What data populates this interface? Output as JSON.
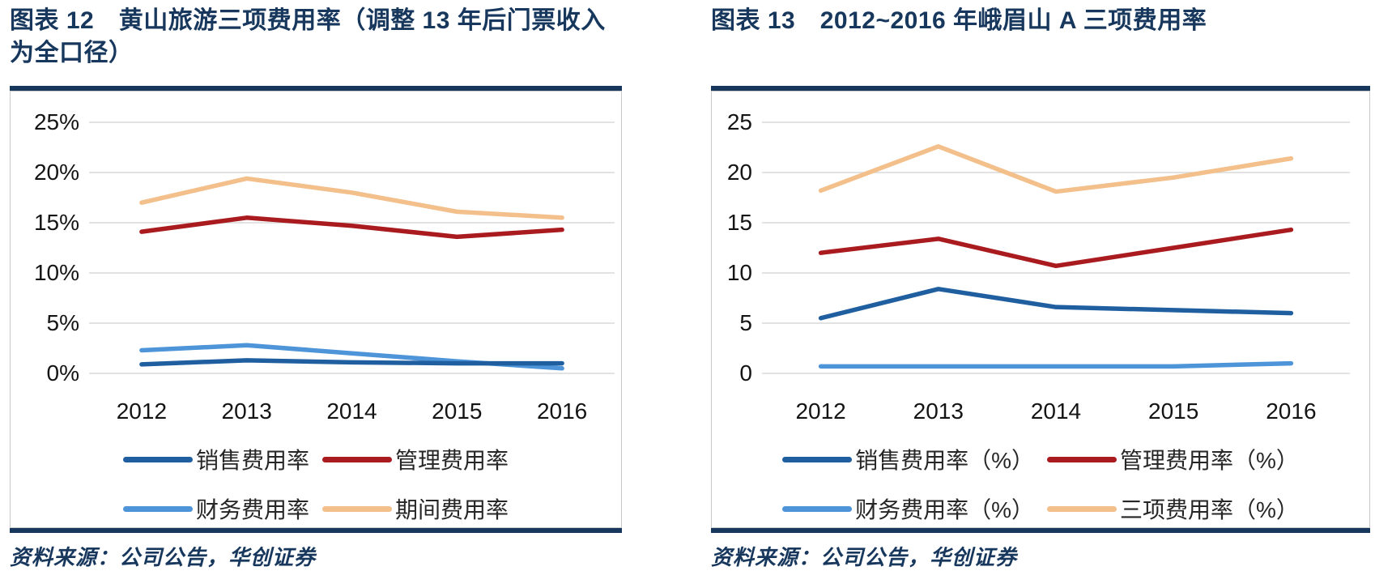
{
  "colors": {
    "navy": "#17375D",
    "grid": "#D9D9D9",
    "box_border": "#C9C9C9",
    "axis_text": "#141414",
    "series_dark_blue": "#1F5FA0",
    "series_dark_red": "#A91B1E",
    "series_light_blue": "#4D94D9",
    "series_tan": "#F3BF8B"
  },
  "panels": [
    {
      "source": "资料来源：公司公告，华创证券",
      "chart_data": {
        "type": "line",
        "title": "图表 12　黄山旅游三项费用率（调整 13 年后门票收入为全口径）",
        "categories": [
          "2012",
          "2013",
          "2014",
          "2015",
          "2016"
        ],
        "series": [
          {
            "name": "销售费用率",
            "color": "#1F5FA0",
            "values": [
              0.9,
              1.3,
              1.1,
              1.0,
              1.0
            ]
          },
          {
            "name": "管理费用率",
            "color": "#A91B1E",
            "values": [
              14.1,
              15.5,
              14.7,
              13.6,
              14.3
            ]
          },
          {
            "name": "财务费用率",
            "color": "#4D94D9",
            "values": [
              2.3,
              2.8,
              2.0,
              1.2,
              0.5
            ]
          },
          {
            "name": "期间费用率",
            "color": "#F3BF8B",
            "values": [
              17.0,
              19.4,
              18.0,
              16.1,
              15.5
            ]
          }
        ],
        "xlabel": "",
        "ylabel": "",
        "ylim": [
          0,
          27
        ],
        "ytick_values": [
          0,
          5,
          10,
          15,
          20,
          25
        ],
        "ytick_labels": [
          "0%",
          "5%",
          "10%",
          "15%",
          "20%",
          "25%"
        ],
        "grid": true,
        "legend_position": "bottom"
      }
    },
    {
      "source": "资料来源：公司公告，华创证券",
      "chart_data": {
        "type": "line",
        "title": "图表 13　2012~2016 年峨眉山 A 三项费用率",
        "categories": [
          "2012",
          "2013",
          "2014",
          "2015",
          "2016"
        ],
        "series": [
          {
            "name": "销售费用率（%）",
            "color": "#1F5FA0",
            "values": [
              5.5,
              8.4,
              6.6,
              6.3,
              6.0
            ]
          },
          {
            "name": "管理费用率（%）",
            "color": "#A91B1E",
            "values": [
              12.0,
              13.4,
              10.7,
              12.5,
              14.3
            ]
          },
          {
            "name": "财务费用率（%）",
            "color": "#4D94D9",
            "values": [
              0.7,
              0.7,
              0.7,
              0.7,
              1.0
            ]
          },
          {
            "name": "三项费用率（%）",
            "color": "#F3BF8B",
            "values": [
              18.2,
              22.6,
              18.1,
              19.5,
              21.4
            ]
          }
        ],
        "xlabel": "",
        "ylabel": "",
        "ylim": [
          0,
          27
        ],
        "ytick_values": [
          0,
          5,
          10,
          15,
          20,
          25
        ],
        "ytick_labels": [
          "0",
          "5",
          "10",
          "15",
          "20",
          "25"
        ],
        "grid": true,
        "legend_position": "bottom"
      }
    }
  ]
}
